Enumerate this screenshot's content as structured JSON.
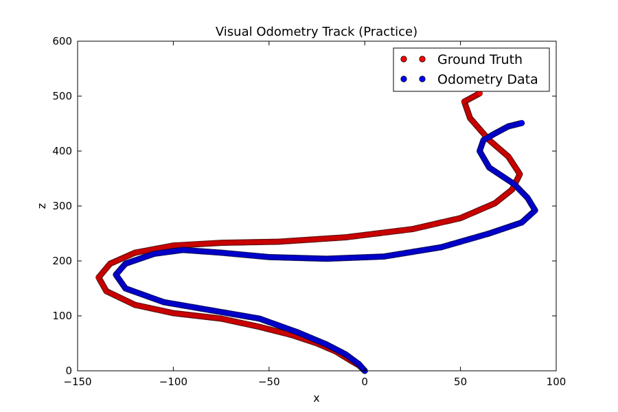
{
  "chart_data": {
    "type": "scatter",
    "title": "Visual Odometry Track (Practice)",
    "xlabel": "x",
    "ylabel": "z",
    "xlim": [
      -150,
      100
    ],
    "ylim": [
      0,
      600
    ],
    "xticks": [
      -150,
      -100,
      -50,
      0,
      50,
      100
    ],
    "yticks": [
      0,
      100,
      200,
      300,
      400,
      500,
      600
    ],
    "xtick_labels": [
      "−150",
      "−100",
      "−50",
      "0",
      "50",
      "100"
    ],
    "ytick_labels": [
      "0",
      "100",
      "200",
      "300",
      "400",
      "500",
      "600"
    ],
    "grid": false,
    "legend_position": "top-right",
    "series": [
      {
        "name": "Ground Truth",
        "color": "#ff0000",
        "points": [
          [
            0,
            0
          ],
          [
            -3,
            10
          ],
          [
            -8,
            20
          ],
          [
            -15,
            35
          ],
          [
            -25,
            50
          ],
          [
            -38,
            65
          ],
          [
            -55,
            80
          ],
          [
            -75,
            95
          ],
          [
            -100,
            105
          ],
          [
            -120,
            120
          ],
          [
            -135,
            145
          ],
          [
            -139,
            170
          ],
          [
            -133,
            195
          ],
          [
            -120,
            215
          ],
          [
            -100,
            228
          ],
          [
            -75,
            233
          ],
          [
            -45,
            235
          ],
          [
            -10,
            243
          ],
          [
            25,
            258
          ],
          [
            50,
            278
          ],
          [
            68,
            305
          ],
          [
            77,
            330
          ],
          [
            81,
            358
          ],
          [
            75,
            390
          ],
          [
            65,
            420
          ],
          [
            55,
            460
          ],
          [
            52,
            490
          ],
          [
            60,
            505
          ]
        ]
      },
      {
        "name": "Odometry Data",
        "color": "#0000ff",
        "points": [
          [
            0,
            0
          ],
          [
            -3,
            12
          ],
          [
            -10,
            30
          ],
          [
            -20,
            48
          ],
          [
            -35,
            70
          ],
          [
            -55,
            95
          ],
          [
            -80,
            110
          ],
          [
            -105,
            125
          ],
          [
            -125,
            150
          ],
          [
            -130,
            175
          ],
          [
            -125,
            195
          ],
          [
            -110,
            213
          ],
          [
            -95,
            220
          ],
          [
            -75,
            215
          ],
          [
            -50,
            207
          ],
          [
            -20,
            204
          ],
          [
            10,
            208
          ],
          [
            40,
            225
          ],
          [
            65,
            250
          ],
          [
            82,
            270
          ],
          [
            89,
            292
          ],
          [
            85,
            315
          ],
          [
            78,
            340
          ],
          [
            65,
            370
          ],
          [
            60,
            400
          ],
          [
            62,
            420
          ],
          [
            68,
            432
          ],
          [
            75,
            445
          ],
          [
            82,
            451
          ]
        ]
      }
    ]
  }
}
